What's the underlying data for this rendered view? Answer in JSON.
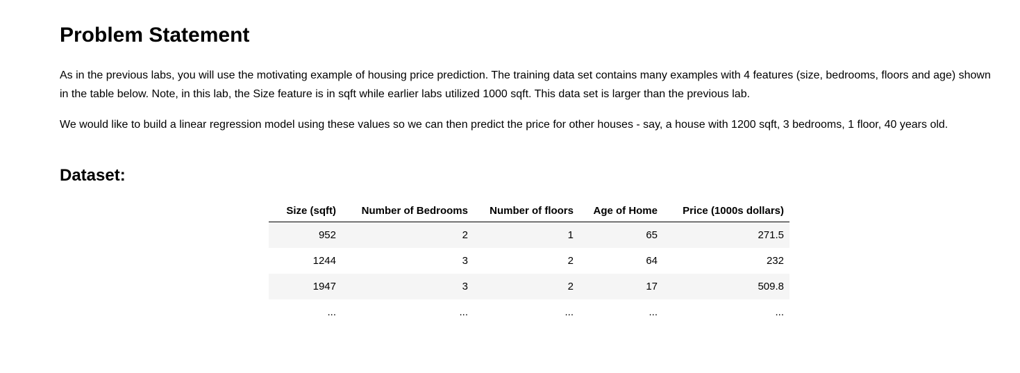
{
  "document": {
    "title": "Problem Statement",
    "paragraphs": [
      "As in the previous labs, you will use the motivating example of housing price prediction. The training data set contains many examples with 4 features (size, bedrooms, floors and age) shown in the table below. Note, in this lab, the Size feature is in sqft while earlier labs utilized 1000 sqft. This data set is larger than the previous lab.",
      "We would like to build a linear regression model using these values so we can then predict the price for other houses - say, a house with 1200 sqft, 3 bedrooms, 1 floor, 40 years old."
    ],
    "dataset_heading": "Dataset:"
  },
  "table": {
    "headers": [
      "Size (sqft)",
      "Number of Bedrooms",
      "Number of floors",
      "Age of Home",
      "Price (1000s dollars)"
    ],
    "rows": [
      [
        "952",
        "2",
        "1",
        "65",
        "271.5"
      ],
      [
        "1244",
        "3",
        "2",
        "64",
        "232"
      ],
      [
        "1947",
        "3",
        "2",
        "17",
        "509.8"
      ],
      [
        "...",
        "...",
        "...",
        "...",
        "..."
      ]
    ]
  },
  "colors": {
    "background": "#ffffff",
    "text": "#000000",
    "row_stripe": "#f5f5f5",
    "header_border": "#000000"
  }
}
